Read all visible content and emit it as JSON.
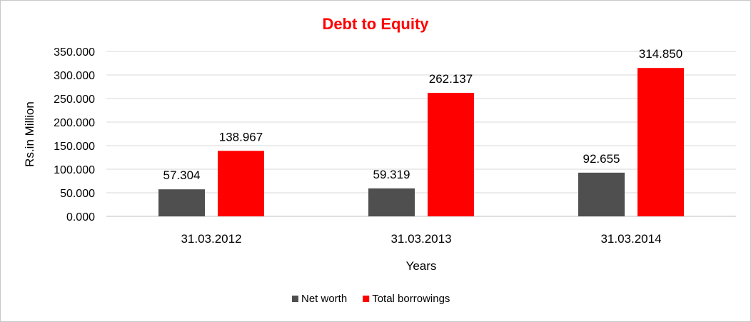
{
  "chart_data": {
    "type": "bar",
    "title": "Debt to Equity",
    "title_color": "#ff0000",
    "xlabel": "Years",
    "ylabel": "Rs.in Million",
    "categories": [
      "31.03.2012",
      "31.03.2013",
      "31.03.2014"
    ],
    "series": [
      {
        "name": "Net worth",
        "color": "#4f4f4f",
        "values": [
          57.304,
          59.319,
          92.655
        ],
        "labels": [
          "57.304",
          "59.319",
          "92.655"
        ]
      },
      {
        "name": "Total borrowings",
        "color": "#ff0000",
        "values": [
          138.967,
          262.137,
          314.85
        ],
        "labels": [
          "138.967",
          "262.137",
          "314.850"
        ]
      }
    ],
    "ylim": [
      0,
      350
    ],
    "yticks": [
      "0.000",
      "50.000",
      "100.000",
      "150.000",
      "200.000",
      "250.000",
      "300.000",
      "350.000"
    ],
    "grid": true,
    "legend_position": "bottom"
  }
}
